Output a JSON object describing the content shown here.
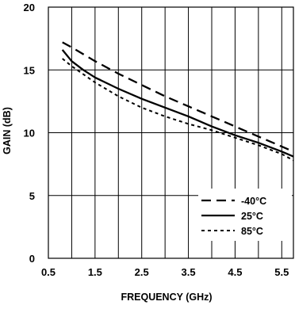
{
  "chart_data": {
    "type": "line",
    "title": "",
    "xlabel": "FREQUENCY (GHz)",
    "ylabel": "GAIN (dB)",
    "xlim": [
      0.5,
      5.75
    ],
    "ylim": [
      0,
      20
    ],
    "x_ticks": [
      "0.5",
      "1.5",
      "2.5",
      "3.5",
      "4.5",
      "5.5"
    ],
    "y_ticks": [
      "0",
      "5",
      "10",
      "15",
      "20"
    ],
    "x_tick_values": [
      0.5,
      1.5,
      2.5,
      3.5,
      4.5,
      5.5
    ],
    "y_tick_values": [
      0,
      5,
      10,
      15,
      20
    ],
    "x_grid": [
      1,
      1.5,
      2,
      2.5,
      3,
      3.5,
      4,
      4.5,
      5,
      5.5
    ],
    "y_grid": [
      5,
      10,
      15
    ],
    "grid": true,
    "legend_position": "bottom-right",
    "series": [
      {
        "name": "-40°C",
        "style": "dashed",
        "color": "#000000",
        "x": [
          0.8,
          1.0,
          1.5,
          2.0,
          2.5,
          3.0,
          3.5,
          4.0,
          4.5,
          5.0,
          5.5,
          5.75
        ],
        "y": [
          17.2,
          16.8,
          15.7,
          14.7,
          13.8,
          12.9,
          12.1,
          11.3,
          10.5,
          9.7,
          8.9,
          8.5
        ]
      },
      {
        "name": "25°C",
        "style": "solid",
        "color": "#000000",
        "x": [
          0.8,
          1.0,
          1.25,
          1.5,
          2.0,
          2.5,
          3.0,
          3.5,
          4.0,
          4.5,
          5.0,
          5.5,
          5.75
        ],
        "y": [
          16.6,
          15.7,
          15.0,
          14.4,
          13.5,
          12.7,
          12.0,
          11.3,
          10.5,
          9.8,
          9.2,
          8.5,
          8.1
        ]
      },
      {
        "name": "85°C",
        "style": "dotted",
        "color": "#000000",
        "x": [
          0.8,
          1.0,
          1.5,
          2.0,
          2.5,
          3.0,
          3.5,
          4.0,
          4.5,
          5.0,
          5.5,
          5.75
        ],
        "y": [
          15.9,
          15.3,
          14.0,
          12.9,
          12.0,
          11.3,
          10.7,
          10.2,
          9.6,
          9.0,
          8.3,
          7.8
        ]
      }
    ]
  }
}
